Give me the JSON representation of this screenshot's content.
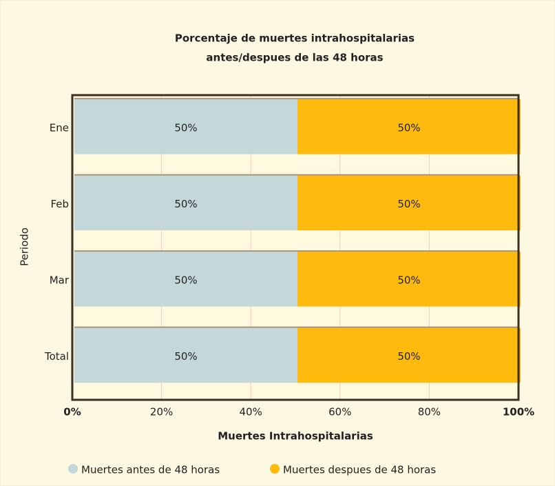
{
  "chart_data": {
    "type": "stacked_barh",
    "title": [
      "Porcentaje de muertes intrahospitalarias",
      "antes/despues de las 48 horas"
    ],
    "x_label": "Muertes Intrahospitalarias",
    "y_label": "Periodo",
    "categories": [
      "Ene",
      "Feb",
      "Mar",
      "Total"
    ],
    "series": [
      {
        "name": "Muertes antes de 48 horas",
        "color": "#c5d8d9",
        "values": [
          50,
          50,
          50,
          50
        ],
        "value_labels": [
          "50%",
          "50%",
          "50%",
          "50%"
        ]
      },
      {
        "name": "Muertes despues de 48 horas",
        "color": "#ffba0e",
        "values": [
          50,
          50,
          50,
          50
        ],
        "value_labels": [
          "50%",
          "50%",
          "50%",
          "50%"
        ]
      }
    ],
    "xlim": [
      0,
      100
    ],
    "xticks": [
      {
        "value": 0,
        "label": "0%"
      },
      {
        "value": 20,
        "label": "20%"
      },
      {
        "value": 40,
        "label": "40%"
      },
      {
        "value": 60,
        "label": "60%"
      },
      {
        "value": 80,
        "label": "80%"
      },
      {
        "value": 100,
        "label": "100%"
      }
    ],
    "grid": true,
    "legend": "bottom"
  }
}
